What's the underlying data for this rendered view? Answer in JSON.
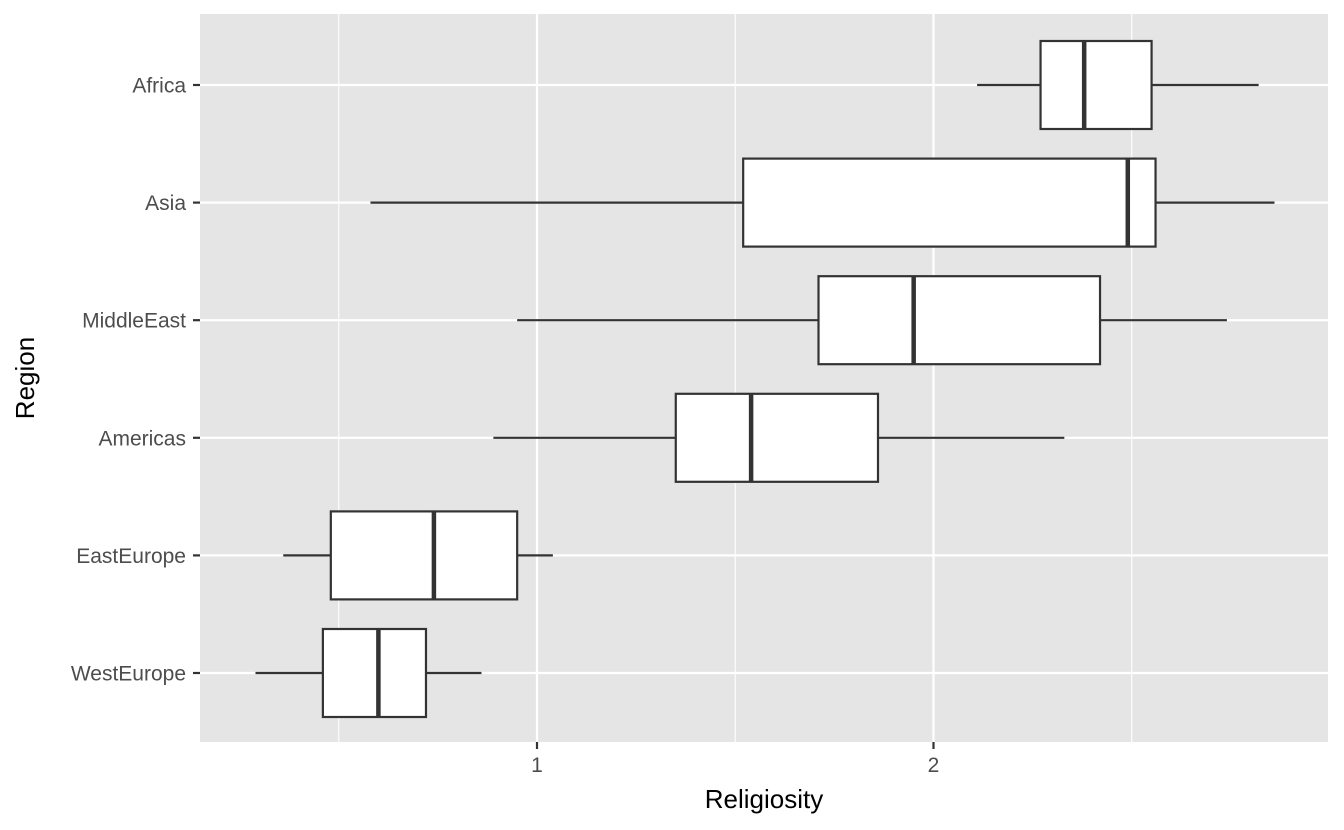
{
  "chart_data": {
    "type": "boxplot",
    "orientation": "horizontal",
    "title": "",
    "xlabel": "Religiosity",
    "ylabel": "Region",
    "xlim": [
      0.15,
      2.82
    ],
    "x_ticks": [
      1,
      2
    ],
    "x_tick_labels": [
      "1",
      "2"
    ],
    "categories": [
      "Africa",
      "Asia",
      "MiddleEast",
      "Americas",
      "EastEurope",
      "WestEurope"
    ],
    "boxes": [
      {
        "category": "Africa",
        "whisker_low": 2.11,
        "q1": 2.27,
        "median": 2.38,
        "q3": 2.55,
        "whisker_high": 2.82
      },
      {
        "category": "Asia",
        "whisker_low": 0.58,
        "q1": 1.52,
        "median": 2.49,
        "q3": 2.56,
        "whisker_high": 2.86
      },
      {
        "category": "MiddleEast",
        "whisker_low": 0.95,
        "q1": 1.71,
        "median": 1.95,
        "q3": 2.42,
        "whisker_high": 2.74
      },
      {
        "category": "Americas",
        "whisker_low": 0.89,
        "q1": 1.35,
        "median": 1.54,
        "q3": 1.86,
        "whisker_high": 2.33
      },
      {
        "category": "EastEurope",
        "whisker_low": 0.36,
        "q1": 0.48,
        "median": 0.74,
        "q3": 0.95,
        "whisker_high": 1.04
      },
      {
        "category": "WestEurope",
        "whisker_low": 0.29,
        "q1": 0.46,
        "median": 0.6,
        "q3": 0.72,
        "whisker_high": 0.86
      }
    ],
    "grid": true,
    "legend": "none",
    "colors": {
      "panel": "#e5e5e5",
      "grid": "#ffffff",
      "box_fill": "#ffffff",
      "box_stroke": "#333333",
      "tick_text": "#4d4d4d"
    }
  }
}
